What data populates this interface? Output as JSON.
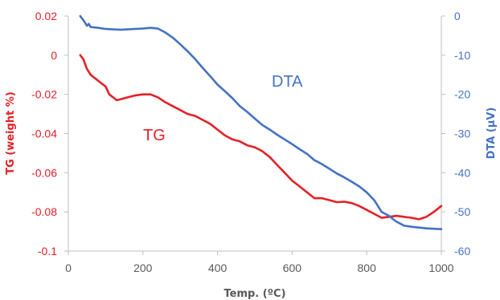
{
  "chart_data": {
    "type": "line",
    "xlabel": "Temp. (ºC)",
    "ylabel_left": "TG (weight %)",
    "ylabel_right": "DTA (μV)",
    "xlim": [
      0,
      1000
    ],
    "ylim_left": [
      -0.1,
      0.02
    ],
    "ylim_right": [
      -60,
      0
    ],
    "x_ticks": [
      "0",
      "200",
      "400",
      "600",
      "800",
      "1000"
    ],
    "y_left_ticks": [
      "0.02",
      "0",
      "-0.02",
      "-0.04",
      "-0.06",
      "-0.08",
      "-0.1"
    ],
    "y_right_ticks": [
      "0",
      "-10",
      "-20",
      "-30",
      "-40",
      "-50",
      "-60"
    ],
    "grid": false,
    "colors": {
      "tg": "#e32126",
      "dta": "#4472c4",
      "axis": "#bfbfbf",
      "text": "#595959"
    },
    "series": [
      {
        "name": "TG",
        "axis": "left",
        "x": [
          32,
          40,
          50,
          60,
          80,
          100,
          110,
          130,
          140,
          160,
          180,
          200,
          220,
          240,
          260,
          280,
          300,
          320,
          340,
          360,
          380,
          400,
          420,
          440,
          460,
          480,
          500,
          520,
          540,
          560,
          580,
          600,
          620,
          640,
          660,
          680,
          700,
          720,
          740,
          760,
          780,
          800,
          820,
          840,
          860,
          880,
          900,
          920,
          940,
          960,
          980,
          1000
        ],
        "values": [
          0.0,
          -0.002,
          -0.007,
          -0.01,
          -0.013,
          -0.016,
          -0.02,
          -0.023,
          -0.0225,
          -0.0215,
          -0.0205,
          -0.02,
          -0.02,
          -0.0215,
          -0.024,
          -0.026,
          -0.028,
          -0.03,
          -0.031,
          -0.033,
          -0.035,
          -0.038,
          -0.041,
          -0.043,
          -0.044,
          -0.046,
          -0.047,
          -0.049,
          -0.052,
          -0.056,
          -0.06,
          -0.064,
          -0.067,
          -0.07,
          -0.073,
          -0.073,
          -0.074,
          -0.075,
          -0.0748,
          -0.0755,
          -0.077,
          -0.079,
          -0.081,
          -0.083,
          -0.0825,
          -0.082,
          -0.0825,
          -0.083,
          -0.0838,
          -0.0825,
          -0.08,
          -0.077
        ]
      },
      {
        "name": "DTA",
        "axis": "right",
        "x": [
          32,
          40,
          50,
          55,
          60,
          80,
          100,
          140,
          180,
          200,
          220,
          240,
          260,
          280,
          300,
          320,
          340,
          360,
          380,
          400,
          420,
          440,
          460,
          480,
          500,
          520,
          540,
          560,
          580,
          600,
          620,
          640,
          660,
          680,
          700,
          720,
          740,
          760,
          780,
          800,
          820,
          840,
          860,
          870,
          880,
          890,
          900,
          920,
          940,
          960,
          980,
          1000
        ],
        "values": [
          0.0,
          -1.0,
          -2.5,
          -2.0,
          -2.8,
          -3.0,
          -3.3,
          -3.5,
          -3.3,
          -3.2,
          -3.0,
          -3.2,
          -4.2,
          -5.5,
          -7.2,
          -9.0,
          -11.0,
          -13.2,
          -15.3,
          -17.5,
          -19.2,
          -21.0,
          -23.0,
          -24.5,
          -26.2,
          -27.8,
          -29.0,
          -30.3,
          -31.5,
          -32.7,
          -34.0,
          -35.2,
          -36.8,
          -37.8,
          -39.0,
          -40.2,
          -41.2,
          -42.3,
          -43.5,
          -45.0,
          -47.0,
          -50.0,
          -51.0,
          -51.8,
          -52.5,
          -53.0,
          -53.5,
          -53.8,
          -54.0,
          -54.2,
          -54.3,
          -54.4
        ]
      }
    ]
  }
}
